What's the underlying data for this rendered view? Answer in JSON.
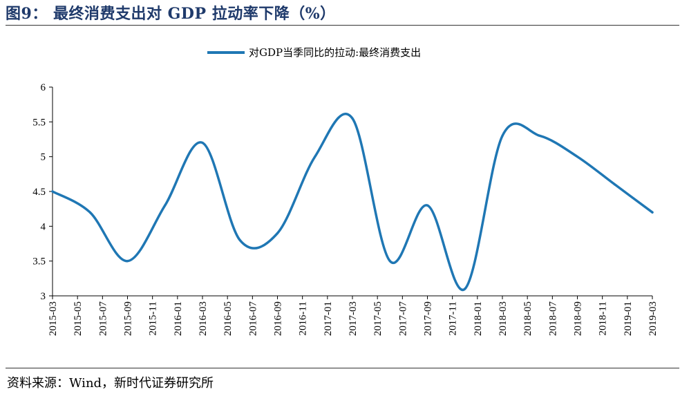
{
  "figure": {
    "title": "图9： 最终消费支出对 GDP 拉动率下降（%）",
    "source": "资料来源：Wind，新时代证券研究所"
  },
  "colors": {
    "line": "#1f77b4",
    "title": "#1f3a6b"
  },
  "chart_data": {
    "type": "line",
    "title": "",
    "xlabel": "",
    "ylabel": "",
    "ylim": [
      3,
      6
    ],
    "yticks": [
      3,
      3.5,
      4,
      4.5,
      5,
      5.5,
      6
    ],
    "ytick_labels": [
      "3",
      "3.5",
      "4",
      "4.5",
      "5",
      "5.5",
      "6"
    ],
    "grid": false,
    "legend_position": "top",
    "x_tick_labels": [
      "2015-03",
      "2015-05",
      "2015-07",
      "2015-09",
      "2015-11",
      "2016-01",
      "2016-03",
      "2016-05",
      "2016-07",
      "2016-09",
      "2016-11",
      "2017-01",
      "2017-03",
      "2017-05",
      "2017-07",
      "2017-09",
      "2017-11",
      "2018-01",
      "2018-03",
      "2018-05",
      "2018-07",
      "2018-09",
      "2018-11",
      "2019-01",
      "2019-03"
    ],
    "series": [
      {
        "name": "对GDP当季同比的拉动:最终消费支出",
        "x": [
          "2015-03",
          "2015-06",
          "2015-09",
          "2015-12",
          "2016-03",
          "2016-06",
          "2016-09",
          "2016-12",
          "2017-03",
          "2017-06",
          "2017-09",
          "2017-12",
          "2018-03",
          "2018-06",
          "2018-09",
          "2018-12",
          "2019-03"
        ],
        "values": [
          4.5,
          4.2,
          3.5,
          4.3,
          5.2,
          3.8,
          3.9,
          5.0,
          5.55,
          3.5,
          4.3,
          3.1,
          5.3,
          5.3,
          5.0,
          4.6,
          4.2
        ]
      }
    ]
  }
}
